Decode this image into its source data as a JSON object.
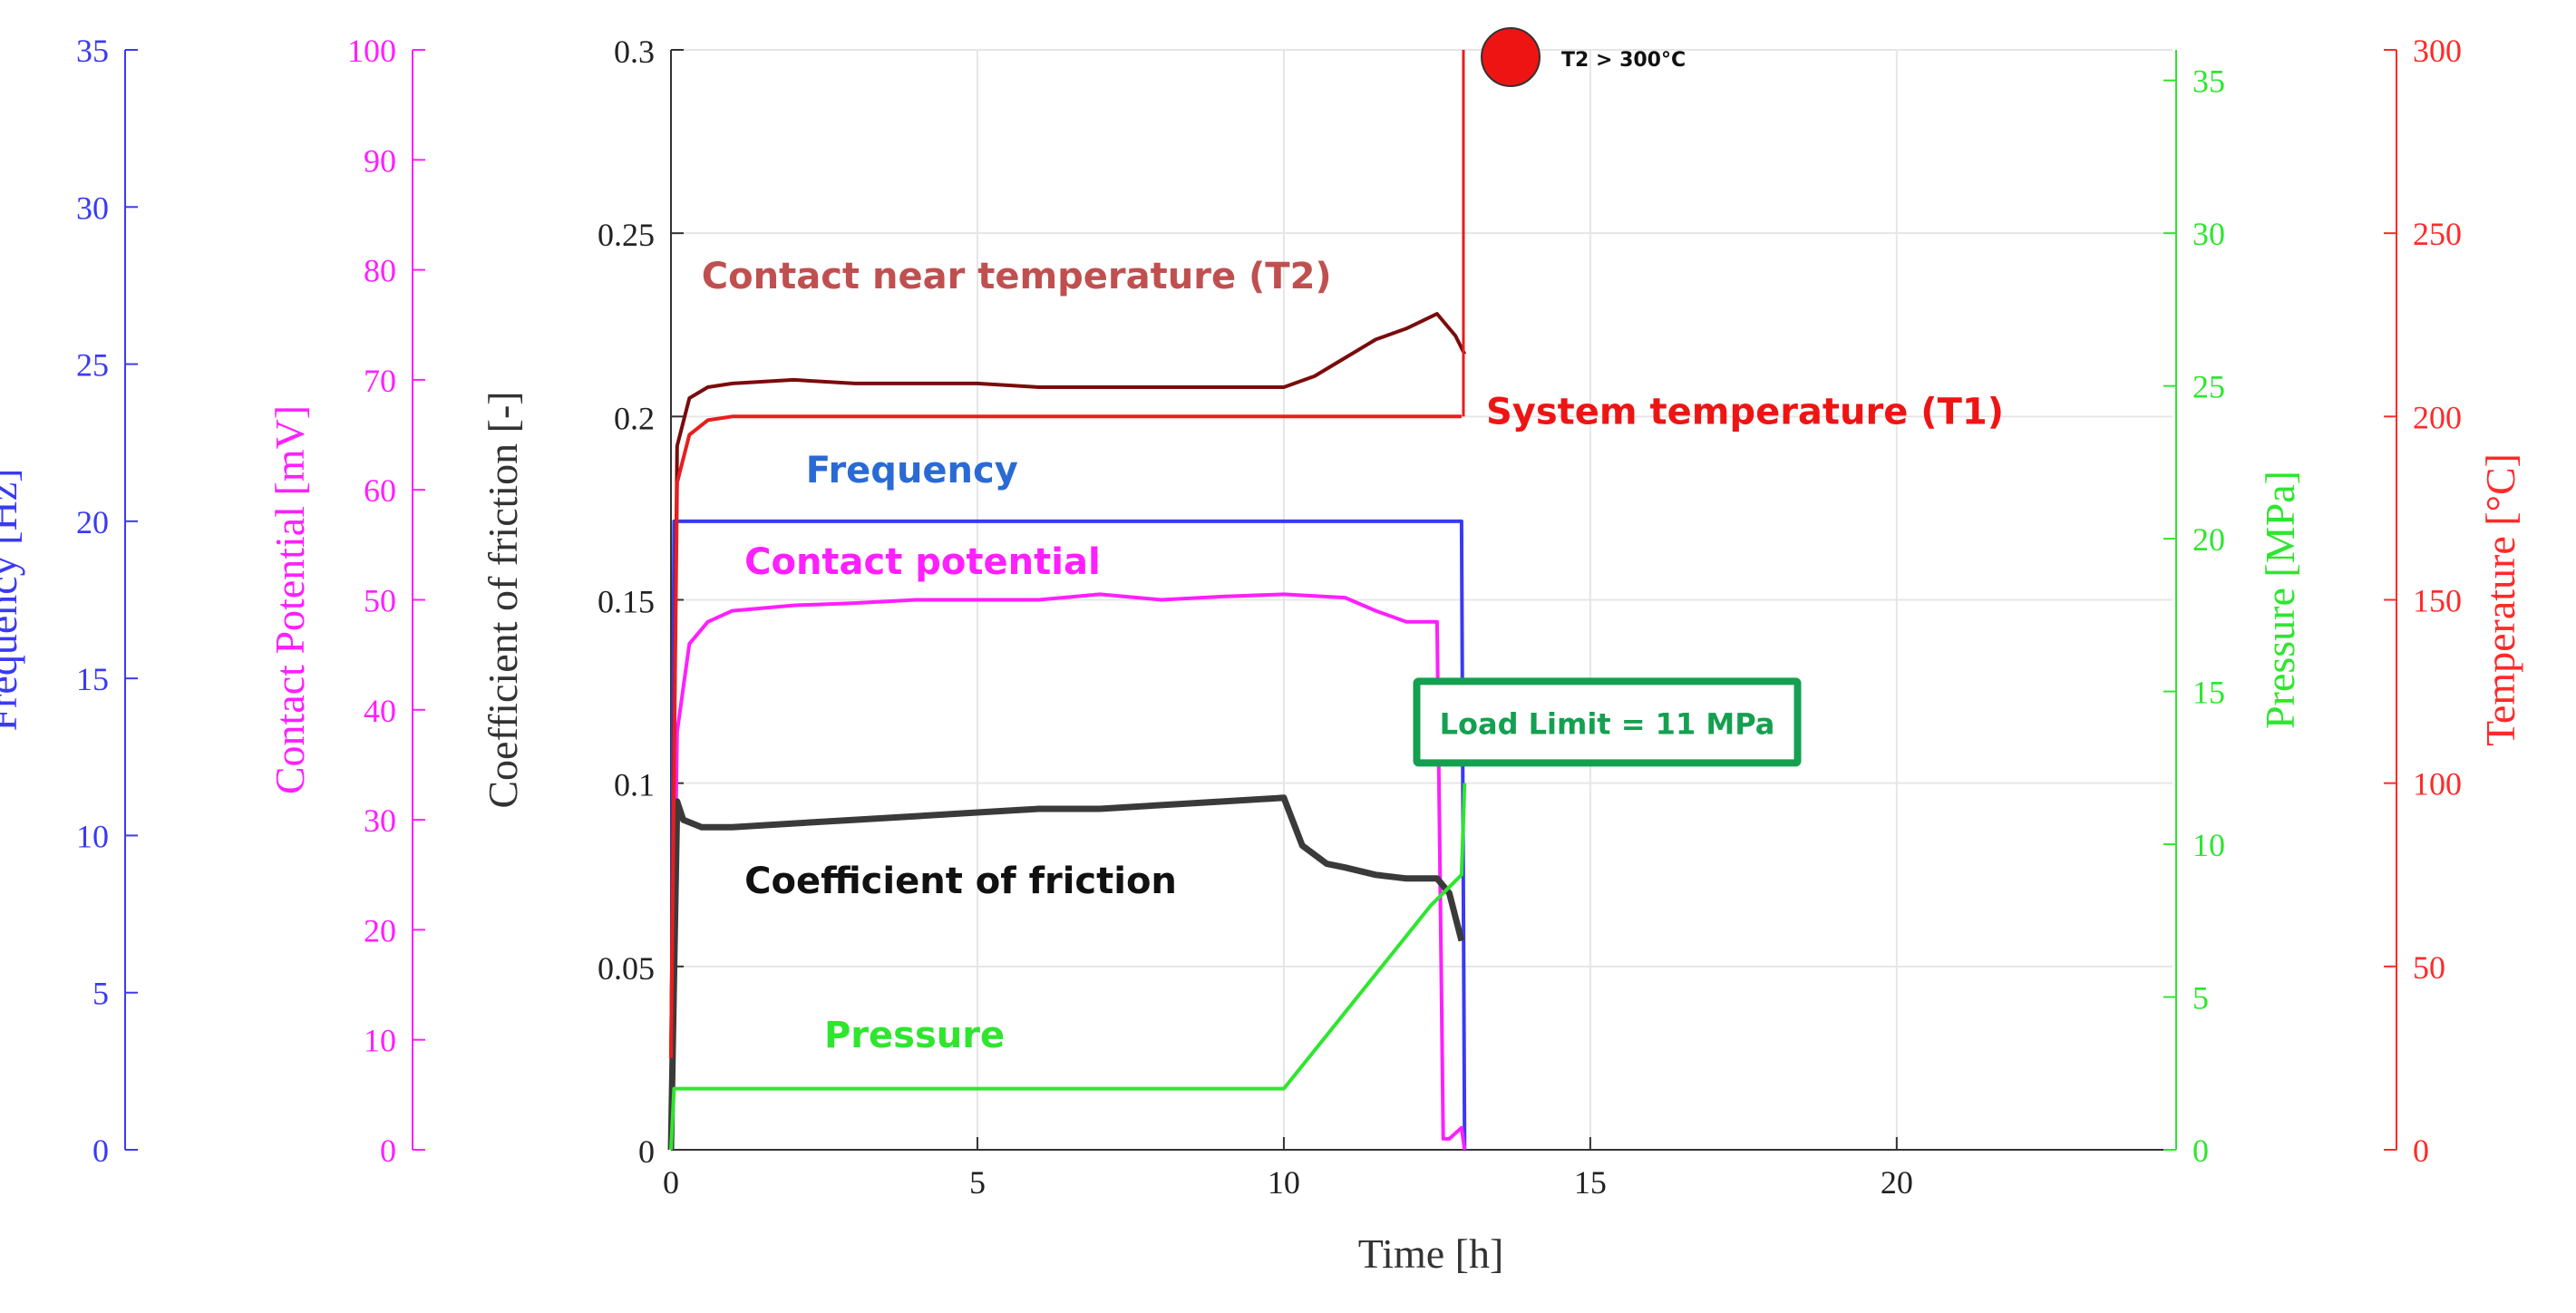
{
  "chart_data": {
    "type": "line",
    "x_axis": {
      "label": "Time [h]",
      "range": [
        0,
        24.5
      ],
      "ticks": [
        0,
        5,
        10,
        15,
        20
      ]
    },
    "main_axis": {
      "label": "Coefficient of friction [-]",
      "range": [
        0,
        0.3
      ],
      "ticks": [
        "0",
        "0.05",
        "0.1",
        "0.15",
        "0.2",
        "0.25",
        "0.3"
      ],
      "tick_values": [
        0,
        0.05,
        0.1,
        0.15,
        0.2,
        0.25,
        0.3
      ]
    },
    "axes": {
      "frequency": {
        "label": "Frequency [Hz]",
        "range": [
          0,
          35
        ],
        "ticks": [
          0,
          5,
          10,
          15,
          20,
          25,
          30,
          35
        ],
        "color": "#3a3af4"
      },
      "potential": {
        "label": "Contact Potential [mV]",
        "range": [
          0,
          100
        ],
        "ticks": [
          0,
          10,
          20,
          30,
          40,
          50,
          60,
          70,
          80,
          90,
          100
        ],
        "color": "#ff1fff"
      },
      "pressure": {
        "label": "Pressure [MPa]",
        "range": [
          0,
          36
        ],
        "ticks": [
          0,
          5,
          10,
          15,
          20,
          25,
          30,
          35
        ],
        "color": "#2ee62e"
      },
      "temperature": {
        "label": "Temperature [°C]",
        "range": [
          0,
          300
        ],
        "ticks": [
          0,
          50,
          100,
          150,
          200,
          250,
          300
        ],
        "color": "#ff2a2a"
      }
    },
    "series": [
      {
        "name": "Frequency",
        "axis": "frequency",
        "color": "#3a3af4",
        "x": [
          0,
          0.05,
          0.1,
          12.9,
          12.95
        ],
        "y": [
          0,
          20,
          20,
          20,
          0
        ]
      },
      {
        "name": "Contact potential",
        "axis": "potential",
        "color": "#ff1fff",
        "x": [
          0,
          0.1,
          0.3,
          0.6,
          1,
          2,
          3,
          4,
          5,
          6,
          7,
          8,
          9,
          10,
          11,
          11.5,
          12,
          12.5,
          12.6,
          12.7,
          12.9,
          12.95
        ],
        "y": [
          0,
          38,
          46,
          48,
          49,
          49.5,
          49.7,
          50,
          50,
          50,
          50.5,
          50,
          50.3,
          50.5,
          50.2,
          49,
          48,
          48,
          1,
          1,
          2,
          0
        ]
      },
      {
        "name": "Coefficient of friction",
        "axis": "main",
        "color": "#3a3a3a",
        "x": [
          0,
          0.1,
          0.2,
          0.5,
          1,
          2,
          3,
          4,
          5,
          6,
          7,
          8,
          9,
          10,
          10.3,
          10.7,
          11,
          11.5,
          12,
          12.5,
          12.7,
          12.9
        ],
        "y": [
          0,
          0.095,
          0.09,
          0.088,
          0.088,
          0.089,
          0.09,
          0.091,
          0.092,
          0.093,
          0.093,
          0.094,
          0.095,
          0.096,
          0.083,
          0.078,
          0.077,
          0.075,
          0.074,
          0.074,
          0.07,
          0.057
        ]
      },
      {
        "name": "Contact near temperature (T2)",
        "axis": "temperature",
        "color": "#7a0c0c",
        "x": [
          0,
          0.1,
          0.3,
          0.6,
          1,
          2,
          3,
          4,
          5,
          6,
          7,
          8,
          9,
          10,
          10.5,
          11,
          11.5,
          12,
          12.5,
          12.8,
          12.95
        ],
        "y": [
          25,
          192,
          205,
          208,
          209,
          210,
          209,
          209,
          209,
          208,
          208,
          208,
          208,
          208,
          211,
          216,
          221,
          224,
          228,
          222,
          217
        ]
      },
      {
        "name": "System temperature (T1)",
        "axis": "temperature",
        "color": "#e81e1e",
        "x": [
          0,
          0.1,
          0.3,
          0.6,
          1,
          2,
          3,
          4,
          5,
          6,
          7,
          8,
          9,
          10,
          11,
          12,
          12.9
        ],
        "y": [
          25,
          182,
          195,
          199,
          200,
          200,
          200,
          200,
          200,
          200,
          200,
          200,
          200,
          200,
          200,
          200,
          200
        ]
      },
      {
        "name": "Pressure",
        "axis": "pressure",
        "color": "#2ee62e",
        "x": [
          0,
          0.05,
          10,
          10.4,
          10.8,
          11.2,
          11.6,
          12,
          12.4,
          12.9,
          12.95
        ],
        "y": [
          0,
          2,
          2,
          3,
          4,
          5,
          6,
          7,
          8,
          9,
          12
        ]
      }
    ],
    "event_spike": {
      "x": 12.93,
      "axis": "temperature",
      "to": 300,
      "color": "#e81e1e"
    },
    "event_marker": {
      "x": 13.7,
      "axis": "main",
      "y": 0.3,
      "label": "T2 > 300°C",
      "color": "#ef1414"
    },
    "annotations": [
      {
        "text": "Contact near temperature (T2)",
        "color": "#c05050",
        "x": 0.5,
        "y": 0.235
      },
      {
        "text": "System temperature (T1)",
        "color": "#ef1414",
        "x": 13.3,
        "y": 0.198
      },
      {
        "text": "Frequency",
        "color": "#2a6ad4",
        "x": 2.2,
        "y": 0.182
      },
      {
        "text": "Contact potential",
        "color": "#ff1fff",
        "x": 1.2,
        "y": 0.157
      },
      {
        "text": "Coefficient of friction",
        "color": "#111111",
        "x": 1.2,
        "y": 0.07
      },
      {
        "text": "Pressure",
        "color": "#2ee62e",
        "x": 2.5,
        "y": 0.028
      }
    ],
    "load_limit_box": {
      "label": "Load Limit = 11 MPa",
      "color": "#14a050",
      "x": 13.5,
      "y": 0.108
    }
  }
}
